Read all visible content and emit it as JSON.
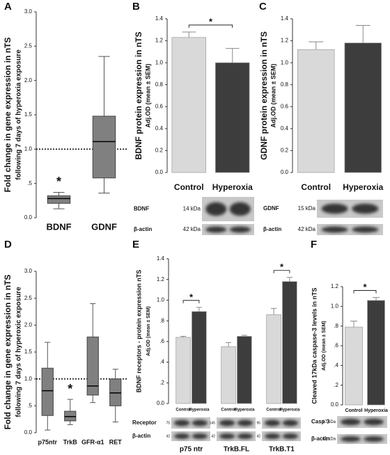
{
  "chart_data": [
    {
      "type": "box",
      "panel": "A",
      "title": "Fold change in gene expression in nTS",
      "subtitle": "following 7 days of hyperoxia exposure",
      "categories": [
        "BDNF",
        "GDNF"
      ],
      "boxes": [
        {
          "min": 0.13,
          "q1": 0.21,
          "median": 0.28,
          "q3": 0.32,
          "max": 0.37
        },
        {
          "min": 0.36,
          "q1": 0.58,
          "median": 1.11,
          "q3": 1.48,
          "max": 2.35
        }
      ],
      "color": "#808080",
      "reference_line": 1.0,
      "annotations": [
        "*"
      ],
      "ylim": [
        0,
        3.0
      ],
      "yticks": [
        {
          "value": 0,
          "label": "0.0"
        },
        {
          "value": 0.5,
          "label": ".5"
        },
        {
          "value": 1.0,
          "label": "1.0"
        },
        1.5,
        {
          "value": 2.0,
          "label": "2.0"
        },
        2.5,
        {
          "value": 3.0,
          "label": "3.0"
        }
      ]
    },
    {
      "type": "bar",
      "panel": "B",
      "title": "BDNF protein expression in nTS",
      "subtitle": "Adj.OD (mean ± SEM)",
      "categories": [
        "Control",
        "Hyperoxia"
      ],
      "values": [
        1.23,
        1.0
      ],
      "errors": [
        0.05,
        0.13
      ],
      "colors": [
        "#d9d9d9",
        "#3d3d3d"
      ],
      "annotations": [
        "*"
      ],
      "ylim": [
        0,
        1.4
      ],
      "yticks": [
        {
          "value": 0,
          "label": "0.0"
        },
        0.2,
        0.4,
        0.6,
        0.8,
        {
          "value": 1.0,
          "label": "1.0"
        },
        1.2,
        1.4
      ],
      "blot": [
        {
          "label": "BDNF",
          "markers": [
            "14 kDa"
          ]
        },
        {
          "label": "β-actin",
          "markers": [
            "42 kDa"
          ]
        }
      ]
    },
    {
      "type": "bar",
      "panel": "C",
      "title": "GDNF protein expression in nTS",
      "subtitle": "Adj.OD (mean ± SEM)",
      "categories": [
        "Control",
        "Hyperoxia"
      ],
      "values": [
        1.12,
        1.18
      ],
      "errors": [
        0.07,
        0.16
      ],
      "colors": [
        "#d9d9d9",
        "#3d3d3d"
      ],
      "annotations": [],
      "ylim": [
        0,
        1.4
      ],
      "yticks": [
        {
          "value": 0,
          "label": "0.0"
        },
        0.2,
        0.4,
        0.6,
        0.8,
        {
          "value": 1.0,
          "label": "1.0"
        },
        1.2,
        1.4
      ],
      "blot": [
        {
          "label": "GDNF",
          "markers": [
            "15 kDa"
          ]
        },
        {
          "label": "β-actin",
          "markers": [
            "42 kDa"
          ]
        }
      ]
    },
    {
      "type": "box",
      "panel": "D",
      "title": "Fold change in gene expression in nTS",
      "subtitle": "following 7 days of hyperoxic exposure",
      "categories": [
        "p75ntr",
        "TrkB",
        "GFR-α1",
        "RET"
      ],
      "boxes": [
        {
          "min": 0.05,
          "q1": 0.32,
          "median": 0.78,
          "q3": 1.2,
          "max": 1.68
        },
        {
          "min": 0.15,
          "q1": 0.22,
          "median": 0.3,
          "q3": 0.4,
          "max": 0.62
        },
        {
          "min": 0.56,
          "q1": 0.7,
          "median": 0.87,
          "q3": 1.78,
          "max": 2.4
        },
        {
          "min": 0.2,
          "q1": 0.5,
          "median": 0.74,
          "q3": 1.0,
          "max": 1.18
        }
      ],
      "color": "#808080",
      "reference_line": 1.0,
      "annotations": [
        "*"
      ],
      "ylim": [
        0,
        3.0
      ],
      "yticks": [
        {
          "value": 0,
          "label": "0.0"
        },
        {
          "value": 0.5,
          "label": ".5"
        },
        {
          "value": 1.0,
          "label": "1.0"
        },
        1.5,
        {
          "value": 2.0,
          "label": "2.0"
        },
        2.5,
        {
          "value": 3.0,
          "label": "3.0"
        }
      ]
    },
    {
      "type": "groupbar",
      "panel": "E",
      "title": "BDNF receptors - protein expression nTS",
      "subtitle": "Adj.OD (mean ± SEM)",
      "categories": [
        "p75 ntr",
        "TrkB.FL",
        "TrkB.T1"
      ],
      "series": [
        {
          "name": "Control",
          "color": "#d9d9d9",
          "values": [
            0.64,
            0.55,
            0.86
          ],
          "errors": [
            0.01,
            0.04,
            0.06
          ]
        },
        {
          "name": "Hyperoxia",
          "color": "#3d3d3d",
          "values": [
            0.89,
            0.65,
            1.18
          ],
          "errors": [
            0.04,
            0.01,
            0.04
          ]
        }
      ],
      "annotations": [
        "*",
        "*"
      ],
      "ylim": [
        0,
        1.4
      ],
      "yticks": [
        {
          "value": 0,
          "label": "0.0"
        },
        {
          "value": 0.2,
          "label": ".2"
        },
        {
          "value": 0.4,
          "label": ".4"
        },
        {
          "value": 0.6,
          "label": ".6"
        },
        {
          "value": 0.8,
          "label": ".8"
        },
        {
          "value": 1.0,
          "label": "1.0"
        },
        1.2,
        1.4
      ],
      "blot": [
        {
          "label": "Receptor",
          "markers": [
            "75",
            "145",
            "95"
          ]
        },
        {
          "label": "β-actin",
          "markers": [
            "42",
            "42",
            "42"
          ]
        }
      ]
    },
    {
      "type": "bar",
      "panel": "F",
      "title": "Cleaved 17kDa caspase-3 levels in nTS",
      "subtitle": "Adj.OD (mean ± SEM)",
      "categories": [
        "Control",
        "Hyperoxia"
      ],
      "values": [
        0.79,
        1.06
      ],
      "errors": [
        0.06,
        0.03
      ],
      "colors": [
        "#d9d9d9",
        "#3d3d3d"
      ],
      "annotations": [
        "*"
      ],
      "ylim": [
        0,
        1.2
      ],
      "yticks": [
        {
          "value": 0,
          "label": "0.0"
        },
        {
          "value": 0.2,
          "label": ".2"
        },
        {
          "value": 0.4,
          "label": ".4"
        },
        {
          "value": 0.6,
          "label": ".6"
        },
        {
          "value": 0.8,
          "label": ".8"
        },
        {
          "value": 1.0,
          "label": "1.0"
        },
        1.2
      ],
      "blot": [
        {
          "label": "Casp 3",
          "markers": [
            "17 kDa"
          ]
        },
        {
          "label": "β-actin",
          "markers": [
            "42 kDa"
          ]
        }
      ]
    }
  ]
}
